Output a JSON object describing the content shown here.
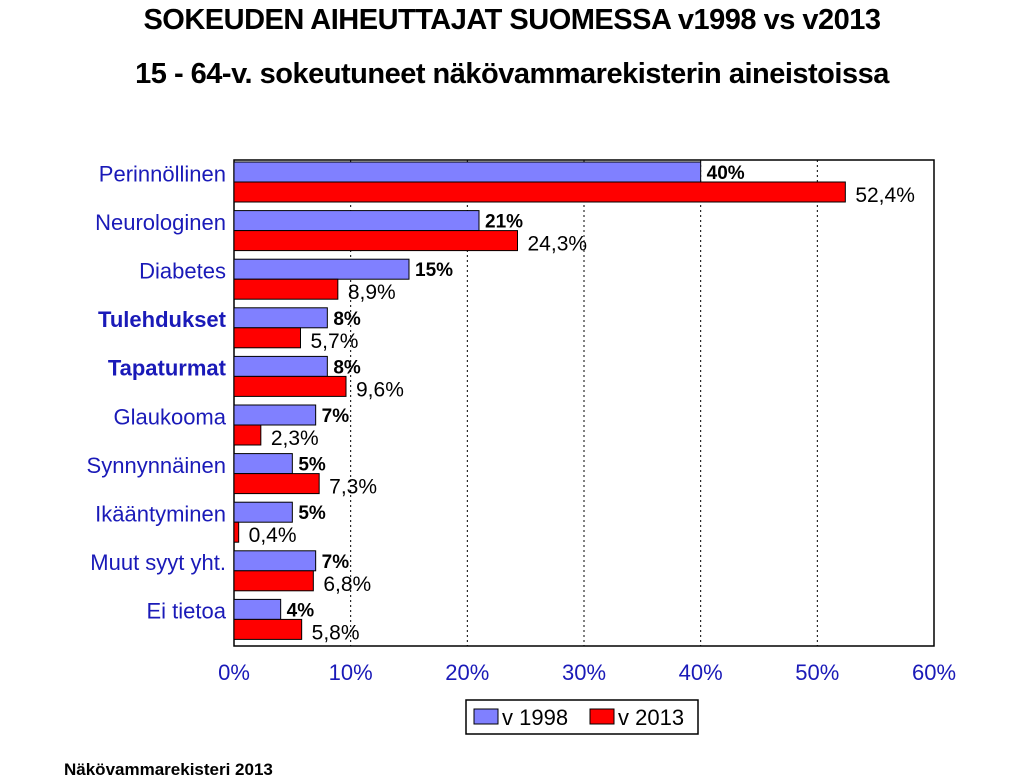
{
  "title": "SOKEUDEN AIHEUTTAJAT SUOMESSA v1998 vs v2013",
  "subtitle": "15 - 64-v. sokeutuneet näkövammarekisterin aineistoissa",
  "source": "Näkövammarekisteri 2013",
  "colors": {
    "series1998": "#8080ff",
    "series2013": "#ff0000",
    "axis_text": "#1a1ab8"
  },
  "chart_data": {
    "type": "bar",
    "orientation": "horizontal",
    "categories": [
      "Perinnöllinen",
      "Neurologinen",
      "Diabetes",
      "Tulehdukset",
      "Tapaturmat",
      "Glaukooma",
      "Synnynnäinen",
      "Ikääntyminen",
      "Muut syyt yht.",
      "Ei tietoa"
    ],
    "bold_categories": [
      "Tulehdukset",
      "Tapaturmat"
    ],
    "series": [
      {
        "name": "v 1998",
        "values": [
          40,
          21,
          15,
          8,
          8,
          7,
          5,
          5,
          7,
          4
        ],
        "labels": [
          "40%",
          "21%",
          "15%",
          "8%",
          "8%",
          "7%",
          "5%",
          "5%",
          "7%",
          "4%"
        ]
      },
      {
        "name": "v 2013",
        "values": [
          52.4,
          24.3,
          8.9,
          5.7,
          9.6,
          2.3,
          7.3,
          0.4,
          6.8,
          5.8
        ],
        "labels": [
          "52,4%",
          "24,3%",
          "8,9%",
          "5,7%",
          "9,6%",
          "2,3%",
          "7,3%",
          "0,4%",
          "6,8%",
          "5,8%"
        ]
      }
    ],
    "xlim": [
      0,
      60
    ],
    "xticks": [
      "0%",
      "10%",
      "20%",
      "30%",
      "40%",
      "50%",
      "60%"
    ],
    "grid": "vertical dotted",
    "legend": "bottom-right"
  }
}
